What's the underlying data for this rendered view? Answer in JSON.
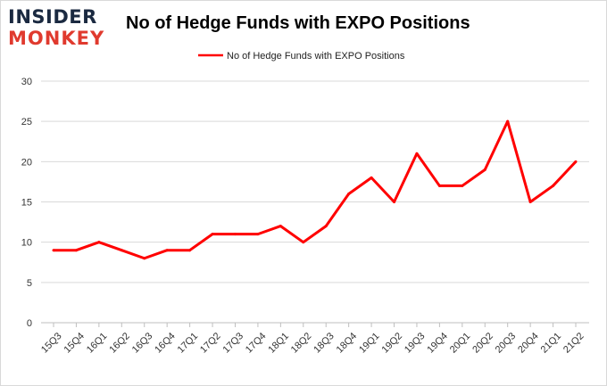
{
  "branding": {
    "logo_line1": "INSIDER",
    "logo_line2": "MONKEY"
  },
  "chart_data": {
    "type": "line",
    "title": "No of Hedge Funds with EXPO Positions",
    "xlabel": "",
    "ylabel": "",
    "categories": [
      "15Q3",
      "15Q4",
      "16Q1",
      "16Q2",
      "16Q3",
      "16Q4",
      "17Q1",
      "17Q2",
      "17Q3",
      "17Q4",
      "18Q1",
      "18Q2",
      "18Q3",
      "18Q4",
      "19Q1",
      "19Q2",
      "19Q3",
      "19Q4",
      "20Q1",
      "20Q2",
      "20Q3",
      "20Q4",
      "21Q1",
      "21Q2"
    ],
    "series": [
      {
        "name": "No of Hedge Funds with EXPO Positions",
        "color": "#ff0000",
        "values": [
          9,
          9,
          10,
          9,
          8,
          9,
          9,
          11,
          11,
          11,
          12,
          10,
          12,
          16,
          18,
          15,
          21,
          17,
          17,
          19,
          25,
          15,
          17,
          20
        ]
      }
    ],
    "ylim": [
      0,
      30
    ],
    "yticks": [
      0,
      5,
      10,
      15,
      20,
      25,
      30
    ],
    "grid": true,
    "legend_position": "top-center"
  }
}
